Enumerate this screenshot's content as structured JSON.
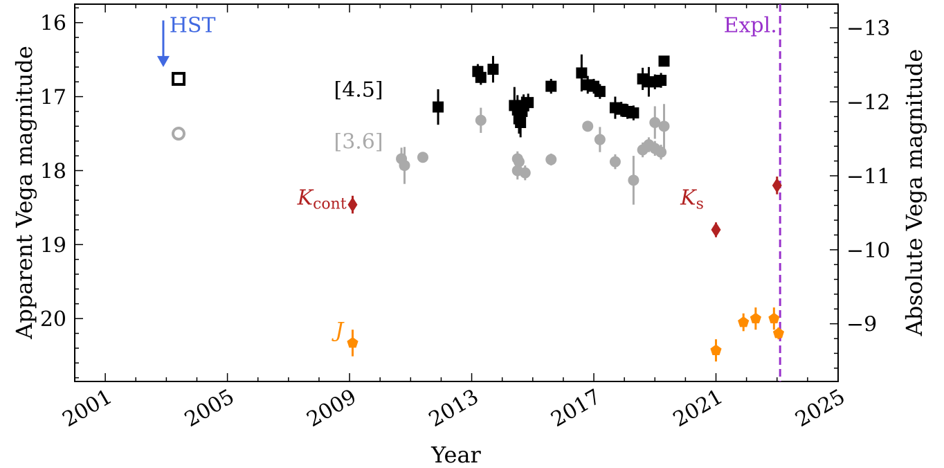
{
  "chart_data": {
    "type": "scatter",
    "xlabel": "Year",
    "ylabel": "Apparent Vega magnitude",
    "ylabel_right": "Absolute Vega magnitude",
    "xlim": [
      2000.0,
      2025.0
    ],
    "ylim": [
      20.85,
      15.75
    ],
    "y_inverted": true,
    "xticks": [
      2001,
      2005,
      2009,
      2013,
      2017,
      2021,
      2025
    ],
    "xtick_labels": [
      "2001",
      "2005",
      "2009",
      "2013",
      "2017",
      "2021",
      "2025"
    ],
    "yticks": [
      16,
      17,
      18,
      19,
      20
    ],
    "ytick_labels": [
      "16",
      "17",
      "18",
      "19",
      "20"
    ],
    "distance_modulus": 29.07,
    "right_ticks": [
      -13,
      -12,
      -11,
      -10,
      -9
    ],
    "right_tick_labels": [
      "−13",
      "−12",
      "−11",
      "−10",
      "−9"
    ],
    "grid": false,
    "colors": {
      "irac45": "#000000",
      "irac36": "#aaaaaa",
      "hst": "#4169e1",
      "kband": "#b22222",
      "jband": "#ff8c00",
      "explosion": "#9932cc"
    },
    "series": [
      {
        "name": "[4.5]",
        "marker": "square",
        "points": [
          {
            "x": 2003.4,
            "y": 16.76,
            "err": 0.05,
            "open": true
          },
          {
            "x": 2011.9,
            "y": 17.14,
            "err": 0.24
          },
          {
            "x": 2013.2,
            "y": 16.66,
            "err": 0.1
          },
          {
            "x": 2013.3,
            "y": 16.74,
            "err": 0.1
          },
          {
            "x": 2013.7,
            "y": 16.63,
            "err": 0.18
          },
          {
            "x": 2014.4,
            "y": 17.12,
            "err": 0.25
          },
          {
            "x": 2014.5,
            "y": 17.18,
            "err": 0.2
          },
          {
            "x": 2014.55,
            "y": 17.3,
            "err": 0.2
          },
          {
            "x": 2014.6,
            "y": 17.35,
            "err": 0.2
          },
          {
            "x": 2014.65,
            "y": 17.2,
            "err": 0.2
          },
          {
            "x": 2014.7,
            "y": 17.12,
            "err": 0.15
          },
          {
            "x": 2014.85,
            "y": 17.08,
            "err": 0.12
          },
          {
            "x": 2015.6,
            "y": 16.86,
            "err": 0.1
          },
          {
            "x": 2016.6,
            "y": 16.68,
            "err": 0.25
          },
          {
            "x": 2016.8,
            "y": 16.84,
            "err": 0.12
          },
          {
            "x": 2017.0,
            "y": 16.86,
            "err": 0.1
          },
          {
            "x": 2017.2,
            "y": 16.93,
            "err": 0.1
          },
          {
            "x": 2017.7,
            "y": 17.15,
            "err": 0.15
          },
          {
            "x": 2017.9,
            "y": 17.17,
            "err": 0.1
          },
          {
            "x": 2018.1,
            "y": 17.2,
            "err": 0.1
          },
          {
            "x": 2018.3,
            "y": 17.22,
            "err": 0.1
          },
          {
            "x": 2018.6,
            "y": 16.76,
            "err": 0.15
          },
          {
            "x": 2018.8,
            "y": 16.8,
            "err": 0.2
          },
          {
            "x": 2019.0,
            "y": 16.8,
            "err": 0.1
          },
          {
            "x": 2019.2,
            "y": 16.78,
            "err": 0.1
          },
          {
            "x": 2019.3,
            "y": 16.52,
            "err": 0.05
          }
        ]
      },
      {
        "name": "[3.6]",
        "marker": "circle",
        "points": [
          {
            "x": 2003.4,
            "y": 17.5,
            "err": 0.05,
            "open": true
          },
          {
            "x": 2010.7,
            "y": 17.84,
            "err": 0.15
          },
          {
            "x": 2010.8,
            "y": 17.93,
            "err": 0.25
          },
          {
            "x": 2011.4,
            "y": 17.82,
            "err": 0.05
          },
          {
            "x": 2013.3,
            "y": 17.32,
            "err": 0.17
          },
          {
            "x": 2014.5,
            "y": 17.84,
            "err": 0.1
          },
          {
            "x": 2014.55,
            "y": 17.88,
            "err": 0.1
          },
          {
            "x": 2014.5,
            "y": 18.0,
            "err": 0.12
          },
          {
            "x": 2014.75,
            "y": 18.03,
            "err": 0.1
          },
          {
            "x": 2015.6,
            "y": 17.85,
            "err": 0.08
          },
          {
            "x": 2016.8,
            "y": 17.4,
            "err": 0.05
          },
          {
            "x": 2017.2,
            "y": 17.58,
            "err": 0.17
          },
          {
            "x": 2017.7,
            "y": 17.88,
            "err": 0.1
          },
          {
            "x": 2018.3,
            "y": 18.13,
            "err": 0.33
          },
          {
            "x": 2018.6,
            "y": 17.72,
            "err": 0.1
          },
          {
            "x": 2018.8,
            "y": 17.65,
            "err": 0.1
          },
          {
            "x": 2019.0,
            "y": 17.7,
            "err": 0.1
          },
          {
            "x": 2019.0,
            "y": 17.35,
            "err": 0.22
          },
          {
            "x": 2019.2,
            "y": 17.75,
            "err": 0.1
          },
          {
            "x": 2019.3,
            "y": 17.4,
            "err": 0.3
          }
        ]
      },
      {
        "name": "K",
        "marker": "diamond",
        "points": [
          {
            "x": 2009.1,
            "y": 18.46,
            "err": 0.12
          },
          {
            "x": 2021.0,
            "y": 18.8,
            "err": 0.1
          },
          {
            "x": 2023.0,
            "y": 18.2,
            "err": 0.12
          }
        ]
      },
      {
        "name": "J",
        "marker": "pentagon",
        "points": [
          {
            "x": 2009.1,
            "y": 20.33,
            "err": 0.18
          },
          {
            "x": 2021.0,
            "y": 20.43,
            "err": 0.15
          },
          {
            "x": 2021.9,
            "y": 20.05,
            "err": 0.12
          },
          {
            "x": 2022.3,
            "y": 20.0,
            "err": 0.15
          },
          {
            "x": 2022.9,
            "y": 20.0,
            "err": 0.15
          },
          {
            "x": 2023.05,
            "y": 20.2,
            "err": 0.08
          }
        ]
      }
    ],
    "upper_limits": [
      {
        "name": "HST",
        "x": 2002.9,
        "y": 15.97
      }
    ],
    "vlines": [
      {
        "x": 2023.1,
        "label": "Expl."
      }
    ],
    "annotations": [
      {
        "key": "hst",
        "text": "HST",
        "x": 2003.1,
        "y": 16.13,
        "anchor": "start"
      },
      {
        "key": "ch2",
        "text": "[4.5]",
        "x": 2010.1,
        "y": 17.0,
        "anchor": "end"
      },
      {
        "key": "ch1",
        "text": "[3.6]",
        "x": 2010.1,
        "y": 17.7,
        "anchor": "end"
      },
      {
        "key": "kcont",
        "text": "K",
        "sub": "cont",
        "x": 2008.9,
        "y": 18.46,
        "anchor": "end"
      },
      {
        "key": "ks",
        "text": "K",
        "sub": "s",
        "x": 2020.6,
        "y": 18.46,
        "anchor": "end"
      },
      {
        "key": "j",
        "text": "J",
        "x": 2008.8,
        "y": 20.25,
        "anchor": "end"
      },
      {
        "key": "expl",
        "text": "Expl.",
        "x": 2023.0,
        "y": 16.13,
        "anchor": "end"
      }
    ]
  }
}
